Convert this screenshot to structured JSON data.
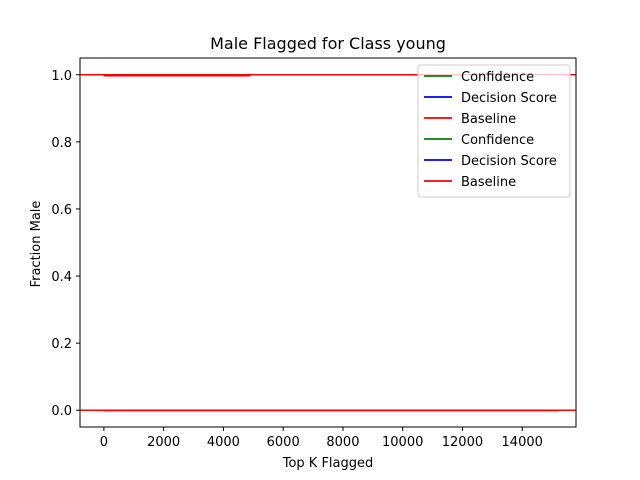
{
  "chart_data": {
    "type": "line",
    "title": "Male Flagged for Class young",
    "xlabel": "Top K Flagged",
    "ylabel": "Fraction Male",
    "xlim": [
      -800,
      15800
    ],
    "ylim": [
      -0.05,
      1.05
    ],
    "xticks": [
      0,
      2000,
      4000,
      6000,
      8000,
      10000,
      12000,
      14000
    ],
    "yticks": [
      0.0,
      0.2,
      0.4,
      0.6,
      0.8,
      1.0
    ],
    "ytick_labels": [
      "0.0",
      "0.2",
      "0.4",
      "0.6",
      "0.8",
      "1.0"
    ],
    "grid": false,
    "legend_position": "top-right",
    "colors": {
      "green": "#008000",
      "blue": "#0000ff",
      "red": "#ff0000"
    },
    "series": [
      {
        "name": "Confidence",
        "color": "#008000",
        "x": [
          0,
          4900
        ],
        "y": [
          0.997,
          0.997
        ]
      },
      {
        "name": "Decision Score",
        "color": "#0000ff",
        "x": [
          0,
          4900
        ],
        "y": [
          0.997,
          0.997
        ]
      },
      {
        "name": "Baseline",
        "color": "#ff0000",
        "baseline": true,
        "y": 1.0
      },
      {
        "name": "Confidence",
        "color": "#008000",
        "x": [
          0,
          15200
        ],
        "y": [
          0.0,
          0.0
        ]
      },
      {
        "name": "Decision Score",
        "color": "#0000ff",
        "x": [
          0,
          15200
        ],
        "y": [
          0.0,
          0.0
        ]
      },
      {
        "name": "Baseline",
        "color": "#ff0000",
        "baseline": true,
        "y": 0.0
      }
    ],
    "overlay_lines": [
      {
        "color": "#ff0000",
        "x": [
          0,
          4900
        ],
        "y": [
          0.997,
          0.997
        ]
      },
      {
        "color": "#ff0000",
        "x": [
          0,
          15200
        ],
        "y": [
          -0.001,
          -0.001
        ]
      }
    ]
  }
}
